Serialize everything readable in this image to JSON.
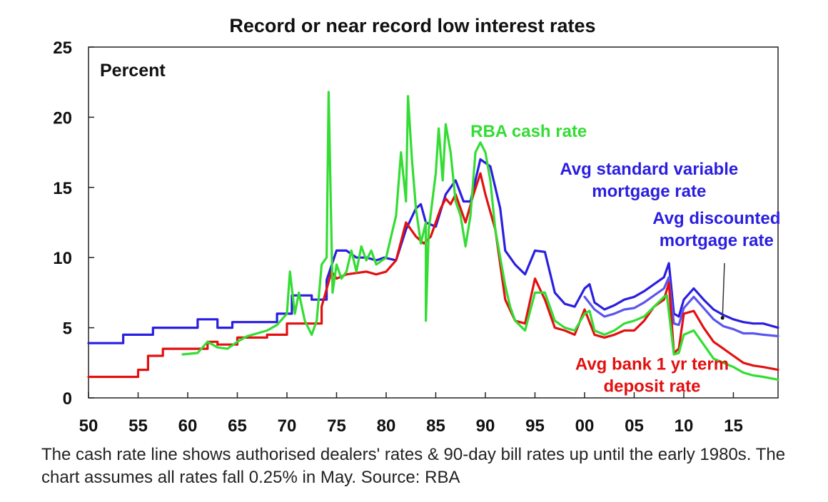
{
  "chart_data": {
    "type": "line",
    "title": "Record or near record low interest rates",
    "ylabel": "Percent",
    "xlabel": "",
    "xlim": [
      1950,
      2019.5
    ],
    "ylim": [
      0,
      25
    ],
    "xticks": [
      1950,
      1955,
      1960,
      1965,
      1970,
      1975,
      1980,
      1985,
      1990,
      1995,
      2000,
      2005,
      2010,
      2015
    ],
    "xtick_labels": [
      "50",
      "55",
      "60",
      "65",
      "70",
      "75",
      "80",
      "85",
      "90",
      "95",
      "00",
      "05",
      "10",
      "15"
    ],
    "yticks": [
      0,
      5,
      10,
      15,
      20,
      25
    ],
    "ytick_labels": [
      "0",
      "5",
      "10",
      "15",
      "20",
      "25"
    ],
    "grid": false,
    "series": [
      {
        "name": "Avg standard variable mortgage rate",
        "color": "#2a1ee0",
        "step": true,
        "points": [
          [
            1950,
            3.9
          ],
          [
            1953.5,
            3.9
          ],
          [
            1953.5,
            4.5
          ],
          [
            1956.5,
            4.5
          ],
          [
            1956.5,
            5.0
          ],
          [
            1961,
            5.0
          ],
          [
            1961,
            5.6
          ],
          [
            1963,
            5.6
          ],
          [
            1963,
            5.0
          ],
          [
            1964.5,
            5.0
          ],
          [
            1964.5,
            5.4
          ],
          [
            1969,
            5.4
          ],
          [
            1969,
            6.0
          ],
          [
            1970.5,
            6.0
          ],
          [
            1970.5,
            7.3
          ],
          [
            1972.5,
            7.3
          ],
          [
            1972.5,
            7.0
          ],
          [
            1974,
            7.0
          ],
          [
            1974,
            8.4
          ],
          [
            1975,
            10.5
          ],
          [
            1976,
            10.5
          ],
          [
            1977,
            10.0
          ],
          [
            1978,
            10.0
          ],
          [
            1979,
            9.8
          ],
          [
            1979.8,
            10.0
          ],
          [
            1981,
            9.8
          ],
          [
            1982,
            12.0
          ],
          [
            1983,
            13.5
          ],
          [
            1983.5,
            13.8
          ],
          [
            1984,
            12.5
          ],
          [
            1985,
            12.2
          ],
          [
            1986,
            14.5
          ],
          [
            1987,
            15.5
          ],
          [
            1987.8,
            14.0
          ],
          [
            1988.5,
            14.0
          ],
          [
            1989.5,
            17.0
          ],
          [
            1990.5,
            16.5
          ],
          [
            1991.5,
            13.5
          ],
          [
            1992,
            10.5
          ],
          [
            1993,
            9.5
          ],
          [
            1994,
            8.8
          ],
          [
            1995,
            10.5
          ],
          [
            1996,
            10.4
          ],
          [
            1997,
            7.5
          ],
          [
            1998,
            6.7
          ],
          [
            1999,
            6.5
          ],
          [
            2000,
            7.8
          ],
          [
            2000.5,
            8.1
          ],
          [
            2001,
            6.8
          ],
          [
            2002,
            6.3
          ],
          [
            2003,
            6.6
          ],
          [
            2004,
            7.0
          ],
          [
            2005,
            7.2
          ],
          [
            2006,
            7.6
          ],
          [
            2007,
            8.1
          ],
          [
            2008,
            8.6
          ],
          [
            2008.5,
            9.6
          ],
          [
            2009,
            6.0
          ],
          [
            2009.5,
            5.8
          ],
          [
            2010,
            7.0
          ],
          [
            2011,
            7.8
          ],
          [
            2012,
            7.0
          ],
          [
            2013,
            6.3
          ],
          [
            2014,
            5.9
          ],
          [
            2015,
            5.6
          ],
          [
            2016,
            5.4
          ],
          [
            2017,
            5.3
          ],
          [
            2018,
            5.3
          ],
          [
            2019.5,
            5.0
          ]
        ]
      },
      {
        "name": "Avg discounted mortgage rate",
        "color": "#5a55ee",
        "step": false,
        "points": [
          [
            2000,
            7.2
          ],
          [
            2001,
            6.3
          ],
          [
            2002,
            5.8
          ],
          [
            2003,
            6.0
          ],
          [
            2004,
            6.3
          ],
          [
            2005,
            6.4
          ],
          [
            2006,
            6.8
          ],
          [
            2007,
            7.3
          ],
          [
            2008,
            7.8
          ],
          [
            2008.5,
            8.6
          ],
          [
            2009,
            5.3
          ],
          [
            2009.5,
            5.2
          ],
          [
            2010,
            6.4
          ],
          [
            2011,
            7.2
          ],
          [
            2012,
            6.4
          ],
          [
            2013,
            5.6
          ],
          [
            2014,
            5.1
          ],
          [
            2015,
            4.9
          ],
          [
            2016,
            4.6
          ],
          [
            2017,
            4.6
          ],
          [
            2018,
            4.5
          ],
          [
            2019.5,
            4.4
          ]
        ]
      },
      {
        "name": "Avg bank 1 yr term deposit rate",
        "color": "#e31010",
        "step": true,
        "points": [
          [
            1950,
            1.5
          ],
          [
            1955,
            1.5
          ],
          [
            1955,
            2.0
          ],
          [
            1956,
            2.0
          ],
          [
            1956,
            3.0
          ],
          [
            1957.5,
            3.0
          ],
          [
            1957.5,
            3.5
          ],
          [
            1962,
            3.5
          ],
          [
            1962,
            4.0
          ],
          [
            1963,
            4.0
          ],
          [
            1963,
            3.8
          ],
          [
            1965,
            3.8
          ],
          [
            1965,
            4.3
          ],
          [
            1968,
            4.3
          ],
          [
            1968,
            4.5
          ],
          [
            1970,
            4.5
          ],
          [
            1970,
            5.3
          ],
          [
            1973.5,
            5.3
          ],
          [
            1973.5,
            6.5
          ],
          [
            1974.5,
            9.0
          ],
          [
            1975,
            8.5
          ],
          [
            1976,
            8.8
          ],
          [
            1978,
            9.0
          ],
          [
            1979,
            8.8
          ],
          [
            1980,
            9.0
          ],
          [
            1981,
            9.8
          ],
          [
            1982,
            12.5
          ],
          [
            1983,
            11.5
          ],
          [
            1983.8,
            11.0
          ],
          [
            1984.5,
            11.5
          ],
          [
            1985.5,
            13.5
          ],
          [
            1986,
            14.2
          ],
          [
            1986.5,
            13.8
          ],
          [
            1987,
            14.5
          ],
          [
            1988,
            12.5
          ],
          [
            1988.8,
            14.5
          ],
          [
            1989.5,
            16.0
          ],
          [
            1990,
            14.5
          ],
          [
            1991,
            12.0
          ],
          [
            1992,
            7.0
          ],
          [
            1993,
            5.5
          ],
          [
            1994,
            5.3
          ],
          [
            1995,
            8.5
          ],
          [
            1996,
            7.0
          ],
          [
            1997,
            5.0
          ],
          [
            1998,
            4.8
          ],
          [
            1999,
            4.5
          ],
          [
            2000,
            6.3
          ],
          [
            2001,
            4.5
          ],
          [
            2002,
            4.3
          ],
          [
            2003,
            4.5
          ],
          [
            2004,
            4.8
          ],
          [
            2005,
            4.8
          ],
          [
            2006,
            5.5
          ],
          [
            2007,
            6.5
          ],
          [
            2008,
            7.0
          ],
          [
            2008.5,
            8.2
          ],
          [
            2009,
            3.2
          ],
          [
            2009.5,
            3.5
          ],
          [
            2010,
            6.0
          ],
          [
            2011,
            6.2
          ],
          [
            2012,
            5.0
          ],
          [
            2013,
            4.0
          ],
          [
            2014,
            3.5
          ],
          [
            2015,
            3.0
          ],
          [
            2016,
            2.5
          ],
          [
            2017,
            2.3
          ],
          [
            2018,
            2.2
          ],
          [
            2019.5,
            2.0
          ]
        ]
      },
      {
        "name": "RBA cash rate",
        "color": "#33dd33",
        "step": false,
        "points": [
          [
            1959.5,
            3.1
          ],
          [
            1961,
            3.2
          ],
          [
            1962,
            4.0
          ],
          [
            1963,
            3.6
          ],
          [
            1964,
            3.5
          ],
          [
            1965,
            4.0
          ],
          [
            1966,
            4.4
          ],
          [
            1967,
            4.6
          ],
          [
            1968,
            4.8
          ],
          [
            1969,
            5.2
          ],
          [
            1970,
            6.0
          ],
          [
            1970.3,
            9.0
          ],
          [
            1970.8,
            6.0
          ],
          [
            1971.2,
            7.5
          ],
          [
            1971.8,
            5.5
          ],
          [
            1972.5,
            4.5
          ],
          [
            1973,
            5.5
          ],
          [
            1973.5,
            9.5
          ],
          [
            1974,
            10.0
          ],
          [
            1974.2,
            21.8
          ],
          [
            1974.6,
            7.5
          ],
          [
            1975,
            9.5
          ],
          [
            1975.5,
            8.5
          ],
          [
            1976,
            9.0
          ],
          [
            1976.5,
            10.5
          ],
          [
            1977,
            9.0
          ],
          [
            1977.5,
            10.8
          ],
          [
            1978,
            9.8
          ],
          [
            1978.5,
            10.5
          ],
          [
            1979,
            9.5
          ],
          [
            1980,
            10.0
          ],
          [
            1980.5,
            11.5
          ],
          [
            1981,
            13.0
          ],
          [
            1981.5,
            17.5
          ],
          [
            1982,
            14.0
          ],
          [
            1982.2,
            21.5
          ],
          [
            1982.6,
            17.0
          ],
          [
            1983,
            13.5
          ],
          [
            1983.5,
            11.0
          ],
          [
            1984,
            12.5
          ],
          [
            1984,
            5.5
          ],
          [
            1984.3,
            12.0
          ],
          [
            1985,
            16.0
          ],
          [
            1985.3,
            19.2
          ],
          [
            1985.7,
            15.5
          ],
          [
            1986,
            19.5
          ],
          [
            1986.5,
            17.5
          ],
          [
            1987,
            14.0
          ],
          [
            1987.5,
            13.0
          ],
          [
            1988,
            10.8
          ],
          [
            1988.5,
            13.0
          ],
          [
            1989,
            17.5
          ],
          [
            1989.5,
            18.2
          ],
          [
            1990,
            17.5
          ],
          [
            1990.5,
            15.5
          ],
          [
            1991,
            12.0
          ],
          [
            1991.5,
            10.0
          ],
          [
            1992,
            8.0
          ],
          [
            1992.5,
            6.5
          ],
          [
            1993,
            5.5
          ],
          [
            1994,
            4.8
          ],
          [
            1995,
            7.5
          ],
          [
            1996,
            7.5
          ],
          [
            1997,
            5.5
          ],
          [
            1998,
            5.0
          ],
          [
            1999,
            4.8
          ],
          [
            2000,
            6.0
          ],
          [
            2000.5,
            6.2
          ],
          [
            2001,
            4.8
          ],
          [
            2002,
            4.5
          ],
          [
            2003,
            4.8
          ],
          [
            2004,
            5.3
          ],
          [
            2005,
            5.5
          ],
          [
            2006,
            5.8
          ],
          [
            2007,
            6.5
          ],
          [
            2008,
            7.2
          ],
          [
            2008.3,
            7.3
          ],
          [
            2009,
            3.1
          ],
          [
            2009.5,
            3.2
          ],
          [
            2010,
            4.5
          ],
          [
            2011,
            4.8
          ],
          [
            2012,
            3.8
          ],
          [
            2013,
            2.8
          ],
          [
            2014,
            2.5
          ],
          [
            2015,
            2.2
          ],
          [
            2016,
            1.8
          ],
          [
            2017,
            1.6
          ],
          [
            2018,
            1.5
          ],
          [
            2019.5,
            1.3
          ]
        ]
      }
    ],
    "annotations": [
      {
        "lines": [
          "RBA cash rate"
        ],
        "color": "#33dd33",
        "anchor": [
          1988.5,
          18.6
        ],
        "align": "start"
      },
      {
        "lines": [
          "Avg standard variable",
          "mortgage rate"
        ],
        "color": "#2a1ee0",
        "anchor": [
          2006.5,
          15.9
        ],
        "align": "middle"
      },
      {
        "lines": [
          "Avg discounted",
          "mortgage rate"
        ],
        "color": "#2a1ee0",
        "anchor": [
          2013.3,
          12.4
        ],
        "align": "middle"
      },
      {
        "lines": [
          "Avg bank 1 yr term",
          "deposit rate"
        ],
        "color": "#e31010",
        "anchor": [
          2006.8,
          2.0
        ],
        "align": "middle"
      }
    ]
  },
  "footnote": "The cash rate line shows authorised dealers' rates & 90-day bill rates up until the early 1980s. The chart assumes all rates fall 0.25% in May. Source: RBA"
}
